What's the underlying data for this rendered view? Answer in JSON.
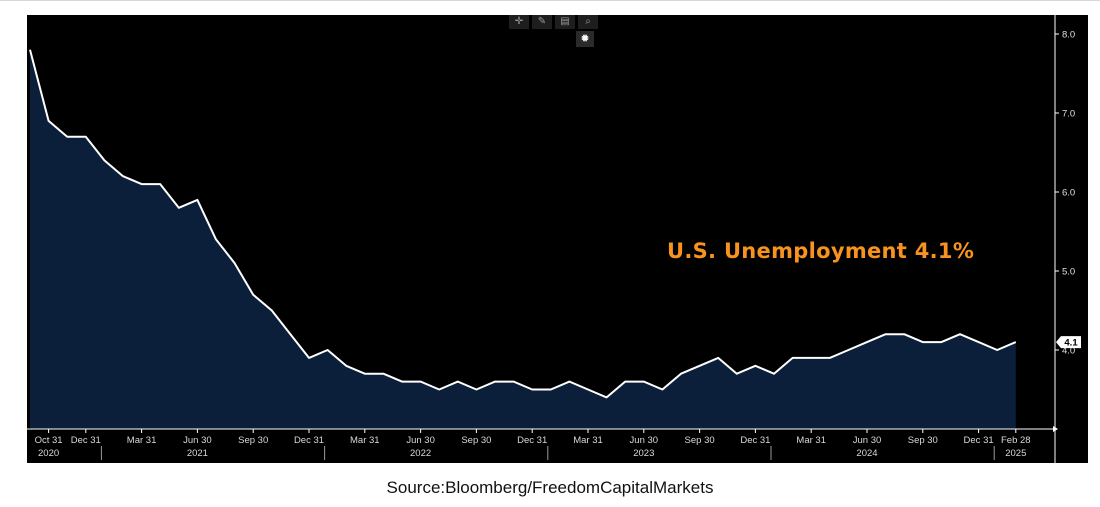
{
  "colors": {
    "background": "#000000",
    "area": "#0b1f3a",
    "line": "#ffffff",
    "annotation": "#f7931e",
    "badge": "#ffffff"
  },
  "toolbar": {
    "icons": [
      "crosshair-icon",
      "pencil-icon",
      "save-icon",
      "zoom-icon"
    ],
    "settings_icon": "gear-icon"
  },
  "chart_data": {
    "type": "area",
    "title": "",
    "annotation": "U.S. Unemployment 4.1%",
    "source": "Source:Bloomberg/FreedomCapitalMarkets",
    "y_axis_position": "right",
    "ylim": [
      3.0,
      8.0
    ],
    "y_ticks": [
      "8.0",
      "7.0",
      "6.0",
      "5.0",
      "4.0"
    ],
    "last_value_label": "4.1",
    "grid": false,
    "x_ticks": [
      {
        "label": "Oct 31",
        "x": "2020-10"
      },
      {
        "label": "Dec 31",
        "x": "2020-12"
      },
      {
        "label": "Mar 31",
        "x": "2021-03"
      },
      {
        "label": "Jun 30",
        "x": "2021-06"
      },
      {
        "label": "Sep 30",
        "x": "2021-09"
      },
      {
        "label": "Dec 31",
        "x": "2021-12"
      },
      {
        "label": "Mar 31",
        "x": "2022-03"
      },
      {
        "label": "Jun 30",
        "x": "2022-06"
      },
      {
        "label": "Sep 30",
        "x": "2022-09"
      },
      {
        "label": "Dec 31",
        "x": "2022-12"
      },
      {
        "label": "Mar 31",
        "x": "2023-03"
      },
      {
        "label": "Jun 30",
        "x": "2023-06"
      },
      {
        "label": "Sep 30",
        "x": "2023-09"
      },
      {
        "label": "Dec 31",
        "x": "2023-12"
      },
      {
        "label": "Mar 31",
        "x": "2024-03"
      },
      {
        "label": "Jun 30",
        "x": "2024-06"
      },
      {
        "label": "Sep 30",
        "x": "2024-09"
      },
      {
        "label": "Dec 31",
        "x": "2024-12"
      },
      {
        "label": "Feb 28",
        "x": "2025-02"
      }
    ],
    "year_labels": [
      {
        "label": "2020",
        "x": "2020-10"
      },
      {
        "label": "2021",
        "x": "2021-06"
      },
      {
        "label": "2022",
        "x": "2022-06"
      },
      {
        "label": "2023",
        "x": "2023-06"
      },
      {
        "label": "2024",
        "x": "2024-06"
      },
      {
        "label": "2025",
        "x": "2025-02"
      }
    ],
    "year_dividers": [
      "2021-01",
      "2022-01",
      "2023-01",
      "2024-01",
      "2025-01"
    ],
    "series": [
      {
        "x": [
          "2020-09",
          "2020-10",
          "2020-11",
          "2020-12",
          "2021-01",
          "2021-02",
          "2021-03",
          "2021-04",
          "2021-05",
          "2021-06",
          "2021-07",
          "2021-08",
          "2021-09",
          "2021-10",
          "2021-11",
          "2021-12",
          "2022-01",
          "2022-02",
          "2022-03",
          "2022-04",
          "2022-05",
          "2022-06",
          "2022-07",
          "2022-08",
          "2022-09",
          "2022-10",
          "2022-11",
          "2022-12",
          "2023-01",
          "2023-02",
          "2023-03",
          "2023-04",
          "2023-05",
          "2023-06",
          "2023-07",
          "2023-08",
          "2023-09",
          "2023-10",
          "2023-11",
          "2023-12",
          "2024-01",
          "2024-02",
          "2024-03",
          "2024-04",
          "2024-05",
          "2024-06",
          "2024-07",
          "2024-08",
          "2024-09",
          "2024-10",
          "2024-11",
          "2024-12",
          "2025-01",
          "2025-02"
        ],
        "values": [
          7.8,
          6.9,
          6.7,
          6.7,
          6.4,
          6.2,
          6.1,
          6.1,
          5.8,
          5.9,
          5.4,
          5.1,
          4.7,
          4.5,
          4.2,
          3.9,
          4.0,
          3.8,
          3.7,
          3.7,
          3.6,
          3.6,
          3.5,
          3.6,
          3.5,
          3.6,
          3.6,
          3.5,
          3.5,
          3.6,
          3.5,
          3.4,
          3.6,
          3.6,
          3.5,
          3.7,
          3.8,
          3.9,
          3.7,
          3.8,
          3.7,
          3.9,
          3.9,
          3.9,
          4.0,
          4.1,
          4.2,
          4.2,
          4.1,
          4.1,
          4.2,
          4.1,
          4.0,
          4.1
        ]
      }
    ]
  }
}
